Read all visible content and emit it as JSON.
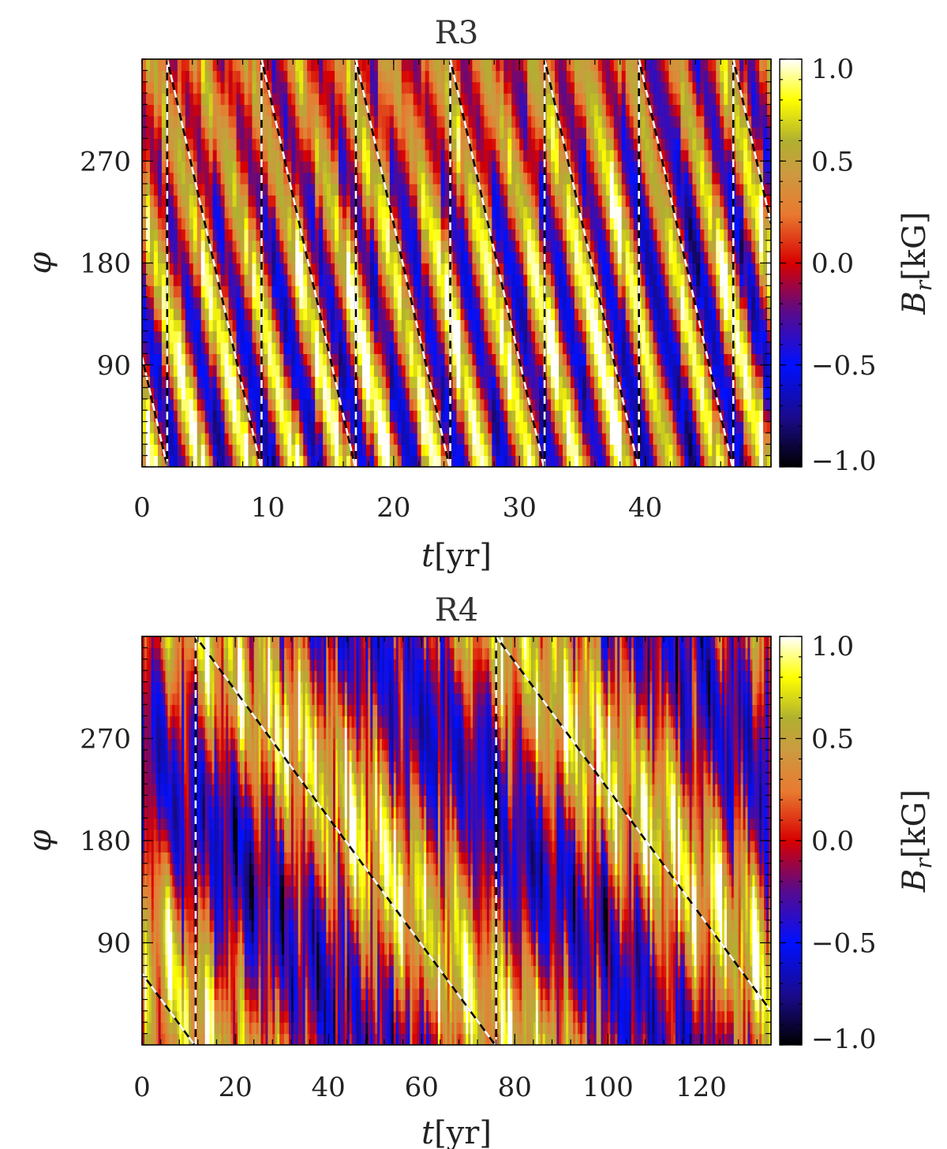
{
  "chart_data": [
    {
      "type": "heatmap",
      "title": "R3",
      "xlabel_var": "t",
      "xlabel_unit": "[yr]",
      "ylabel": "φ",
      "cbar_label_var": "B",
      "cbar_label_sub": "r",
      "cbar_label_unit": "[kG]",
      "xlim": [
        0,
        50
      ],
      "ylim": [
        0,
        360
      ],
      "clim": [
        -1.0,
        1.0
      ],
      "x_ticks": [
        0,
        10,
        20,
        30,
        40
      ],
      "y_ticks": [
        90,
        180,
        270
      ],
      "cbar_ticks": [
        -1.0,
        -0.5,
        0.0,
        0.5,
        1.0
      ],
      "cbar_tick_labels": [
        "−1.0",
        "−0.5",
        "0.0",
        "0.5",
        "1.0"
      ],
      "field": {
        "seed": 3,
        "offset": 0.18,
        "band_slope_deg_per_yr": -48,
        "band_width": 120,
        "noise": 0.35
      },
      "migration_lines": {
        "phi_start": 97,
        "phi_rate_deg_per_yr": -48.4,
        "wrap_times": [
          2.0,
          9.5,
          17.0,
          24.5,
          32.0,
          39.5,
          47.0
        ],
        "t_end": 50
      }
    },
    {
      "type": "heatmap",
      "title": "R4",
      "xlabel_var": "t",
      "xlabel_unit": "[yr]",
      "ylabel": "φ",
      "cbar_label_var": "B",
      "cbar_label_sub": "r",
      "cbar_label_unit": "[kG]",
      "xlim": [
        0,
        135
      ],
      "ylim": [
        0,
        360
      ],
      "clim": [
        -1.0,
        1.0
      ],
      "x_ticks": [
        0,
        20,
        40,
        60,
        80,
        100,
        120
      ],
      "y_ticks": [
        90,
        180,
        270
      ],
      "cbar_ticks": [
        -1.0,
        -0.5,
        0.0,
        0.5,
        1.0
      ],
      "cbar_tick_labels": [
        "−1.0",
        "−0.5",
        "0.0",
        "0.5",
        "1.0"
      ],
      "field": {
        "seed": 4,
        "offset": 0.1,
        "band_slope_deg_per_yr": -5.6,
        "band_width": 150,
        "noise": 0.55
      },
      "migration_lines": {
        "phi_start": 63,
        "phi_rate_deg_per_yr": -5.6,
        "wrap_times": [
          11.5,
          76.0
        ],
        "t_end": 135
      }
    }
  ]
}
